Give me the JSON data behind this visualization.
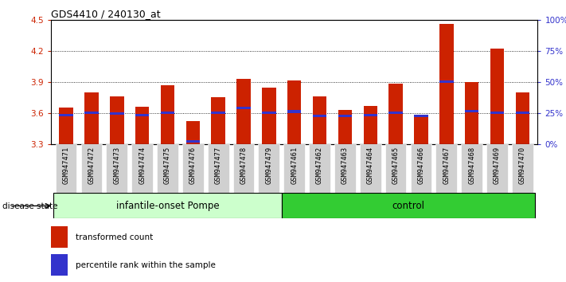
{
  "title": "GDS4410 / 240130_at",
  "samples": [
    "GSM947471",
    "GSM947472",
    "GSM947473",
    "GSM947474",
    "GSM947475",
    "GSM947476",
    "GSM947477",
    "GSM947478",
    "GSM947479",
    "GSM947461",
    "GSM947462",
    "GSM947463",
    "GSM947464",
    "GSM947465",
    "GSM947466",
    "GSM947467",
    "GSM947468",
    "GSM947469",
    "GSM947470"
  ],
  "red_values": [
    3.65,
    3.8,
    3.76,
    3.66,
    3.87,
    3.52,
    3.75,
    3.93,
    3.84,
    3.91,
    3.76,
    3.63,
    3.67,
    3.88,
    3.58,
    4.46,
    3.9,
    4.22,
    3.8
  ],
  "blue_values": [
    3.575,
    3.6,
    3.595,
    3.58,
    3.603,
    3.325,
    3.6,
    3.648,
    3.6,
    3.612,
    3.572,
    3.568,
    3.578,
    3.6,
    3.57,
    3.9,
    3.618,
    3.6,
    3.6
  ],
  "ymin": 3.3,
  "ymax": 4.5,
  "yticks": [
    3.3,
    3.6,
    3.9,
    4.2,
    4.5
  ],
  "right_yticks": [
    0,
    25,
    50,
    75,
    100
  ],
  "right_ylabels": [
    "0%",
    "25%",
    "50%",
    "75%",
    "100%"
  ],
  "group1_label": "infantile-onset Pompe",
  "group2_label": "control",
  "group1_count": 9,
  "group2_count": 10,
  "bar_color": "#cc2200",
  "blue_color": "#3333cc",
  "sample_label_bg": "#d0d0d0",
  "group1_bg": "#ccffcc",
  "group2_bg": "#33cc33",
  "bar_width": 0.55,
  "disease_state_label": "disease state",
  "legend1": "transformed count",
  "legend2": "percentile rank within the sample",
  "grid_lines": [
    3.6,
    3.9,
    4.2
  ]
}
